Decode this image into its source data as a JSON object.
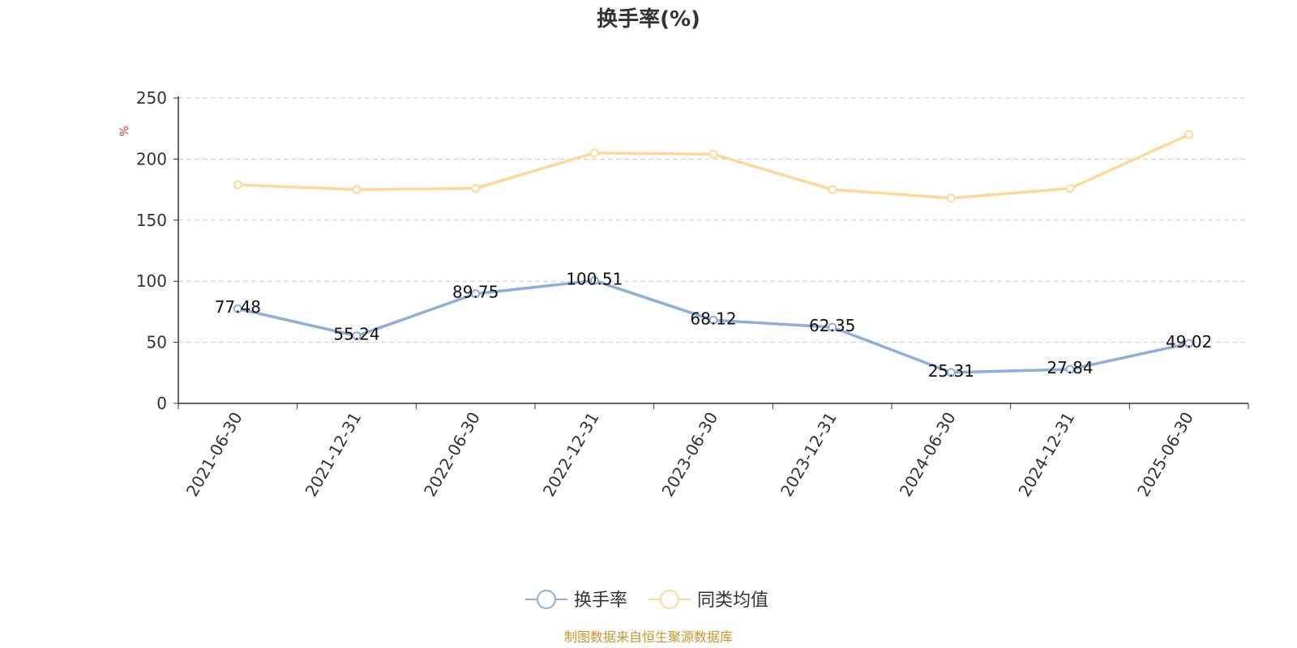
{
  "chart_data": {
    "type": "line",
    "title": "换手率(%)",
    "ylabel": "%",
    "ylim": [
      0,
      250
    ],
    "yticks": [
      0,
      50,
      100,
      150,
      200,
      250
    ],
    "grid": true,
    "legend_position": "bottom-center",
    "categories": [
      "2021-06-30",
      "2021-12-31",
      "2022-06-30",
      "2022-12-31",
      "2023-06-30",
      "2023-12-31",
      "2024-06-30",
      "2024-12-31",
      "2025-06-30"
    ],
    "series": [
      {
        "name": "换手率",
        "color": "#8eaedb",
        "values": [
          77.48,
          55.24,
          89.75,
          100.51,
          68.12,
          62.35,
          25.31,
          27.84,
          49.02
        ],
        "labels": [
          "77.48",
          "55.24",
          "89.75",
          "100.51",
          "68.12",
          "62.35",
          "25.31",
          "27.84",
          "49.02"
        ]
      },
      {
        "name": "同类均值",
        "color": "#fcd997",
        "values": [
          179,
          175,
          176,
          205,
          204,
          175,
          168,
          176,
          220
        ]
      }
    ],
    "source": "制图数据来自恒生聚源数据库"
  },
  "colors": {
    "axis": "#333333",
    "grid": "#cccccc",
    "unit": "#e03030",
    "source": "#c8962e"
  }
}
